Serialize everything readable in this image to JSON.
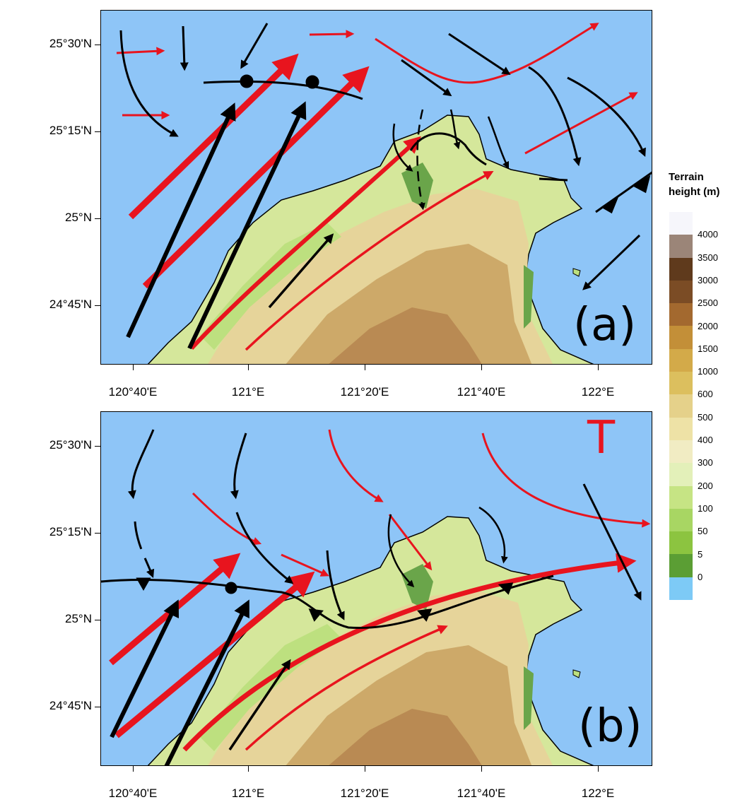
{
  "panels": [
    {
      "id": "a",
      "tag": "(a)",
      "lat_ticks": [
        "25°30'N",
        "25°15'N",
        "25°N",
        "24°45'N"
      ],
      "lon_ticks": [
        "120°40'E",
        "121°E",
        "121°20'E",
        "121°40'E",
        "122°E"
      ]
    },
    {
      "id": "b",
      "tag": "(b)",
      "typhoon_symbol": "T",
      "lat_ticks": [
        "25°30'N",
        "25°15'N",
        "25°N",
        "24°45'N"
      ],
      "lon_ticks": [
        "120°40'E",
        "121°E",
        "121°20'E",
        "121°40'E",
        "122°E"
      ]
    }
  ],
  "legend": {
    "title_line1": "Terrain",
    "title_line2": "height (m)",
    "levels": [
      "4000",
      "3500",
      "3000",
      "2500",
      "2000",
      "1500",
      "1000",
      "600",
      "500",
      "400",
      "300",
      "200",
      "100",
      "50",
      "5",
      "0"
    ],
    "colors": [
      "#f6f6fb",
      "#9b8578",
      "#5f3a1c",
      "#7b4c25",
      "#a3692f",
      "#c38f38",
      "#d3aa49",
      "#dcbf5e",
      "#e5d18a",
      "#eee2a6",
      "#f1ecc3",
      "#e3f0b9",
      "#c6e484",
      "#a8d663",
      "#8cc440",
      "#5b9e34",
      "#7dcaf6"
    ]
  },
  "colors": {
    "sea": "#8ec5f7",
    "low_level_flow": "#e8141e",
    "surface_flow": "#000000"
  }
}
